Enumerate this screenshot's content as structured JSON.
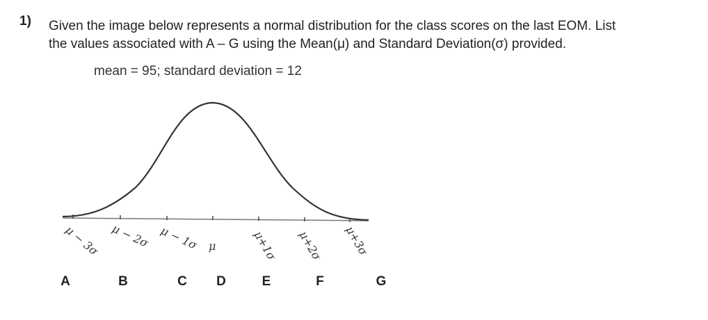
{
  "question": {
    "number": "1)",
    "line1": "Given the image below represents a normal distribution for the class scores on the last EOM. List",
    "line2": "the values associated with A – G using the Mean(μ) and Standard Deviation(σ) provided."
  },
  "given": "mean = 95; standard deviation = 12",
  "tick_labels": [
    "μ − 3σ",
    "μ − 2σ",
    "μ − 1σ",
    "μ",
    "μ+1σ",
    "μ+2σ",
    "μ+3σ"
  ],
  "letters": [
    "A",
    "B",
    "C",
    "D",
    "E",
    "F",
    "G"
  ]
}
